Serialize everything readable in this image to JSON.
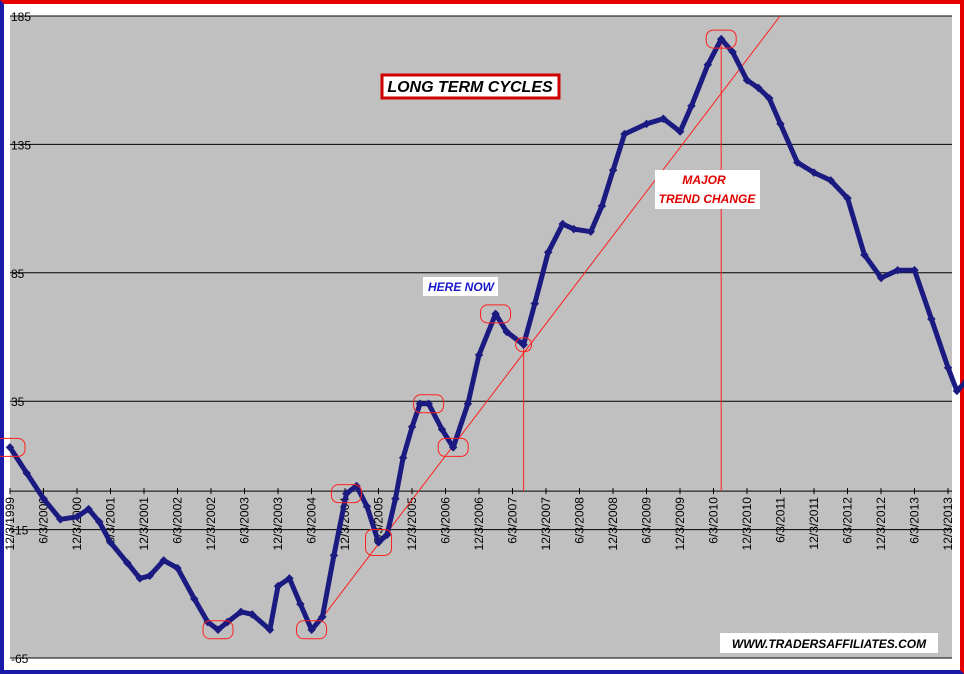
{
  "chart_data": {
    "type": "line",
    "title": "LONG TERM CYCLES",
    "xlabel": "",
    "ylabel": "",
    "ylim": [
      -65,
      185
    ],
    "y_ticks": [
      "185",
      "135",
      "85",
      "35",
      "-15",
      "-65"
    ],
    "x_ticks": [
      "12/3/1999",
      "6/3/2000",
      "12/3/2000",
      "6/3/2001",
      "12/3/2001",
      "6/3/2002",
      "12/3/2002",
      "6/3/2003",
      "12/3/2003",
      "6/3/2004",
      "12/3/2004",
      "6/3/2005",
      "12/3/2005",
      "6/3/2006",
      "12/3/2006",
      "6/3/2007",
      "12/3/2007",
      "6/3/2008",
      "12/3/2008",
      "6/3/2009",
      "12/3/2009",
      "6/3/2010",
      "12/3/2010",
      "6/3/2011",
      "12/3/2011",
      "6/3/2012",
      "12/3/2012",
      "6/3/2013",
      "12/3/2013"
    ],
    "grid": "horizontal",
    "plot_background": "#c0c0c0",
    "series_color": "#1a1a80",
    "series": [
      {
        "values": [
          [
            "1999-12-03",
            [
              17
            ]
          ],
          [
            "2000-03-03",
            [
              7
            ]
          ],
          [
            "2000-06-03",
            [
              -3
            ]
          ],
          [
            "2000-09-03",
            [
              -11
            ]
          ],
          [
            "2000-12-03",
            [
              -10
            ]
          ],
          [
            "2001-02-03",
            [
              -7
            ]
          ],
          [
            "2001-04-03",
            [
              -12
            ]
          ],
          [
            "2001-06-03",
            [
              -20
            ]
          ],
          [
            "2001-09-03",
            [
              -28
            ]
          ],
          [
            "2001-11-10",
            [
              -34
            ]
          ],
          [
            "2002-01-03",
            [
              -33
            ]
          ],
          [
            "2002-03-20",
            [
              -27
            ]
          ],
          [
            "2002-06-03",
            [
              -30
            ]
          ],
          [
            "2002-09-03",
            [
              -42
            ]
          ],
          [
            "2002-11-15",
            [
              -51
            ]
          ],
          [
            "2003-01-10",
            [
              -54
            ]
          ],
          [
            "2003-03-03",
            [
              -51
            ]
          ],
          [
            "2003-05-15",
            [
              -47
            ]
          ],
          [
            "2003-07-15",
            [
              -48
            ]
          ],
          [
            "2003-10-20",
            [
              -54
            ]
          ],
          [
            "2003-12-03",
            [
              -37
            ]
          ],
          [
            "2004-02-03",
            [
              -34
            ]
          ],
          [
            "2004-04-03",
            [
              -44
            ]
          ],
          [
            "2004-06-03",
            [
              -54
            ]
          ],
          [
            "2004-08-01",
            [
              -49
            ]
          ],
          [
            "2004-10-03",
            [
              -25
            ]
          ],
          [
            "2004-12-10",
            [
              -1
            ]
          ],
          [
            "2005-02-03",
            [
              2
            ]
          ],
          [
            "2005-04-01",
            [
              -6
            ]
          ],
          [
            "2005-06-03",
            [
              -20
            ]
          ],
          [
            "2005-07-20",
            [
              -17
            ]
          ],
          [
            "2005-09-03",
            [
              -3
            ]
          ],
          [
            "2005-10-15",
            [
              13
            ]
          ],
          [
            "2005-12-03",
            [
              25
            ]
          ],
          [
            "2006-01-15",
            [
              34
            ]
          ],
          [
            "2006-03-03",
            [
              34
            ]
          ],
          [
            "2006-05-15",
            [
              24
            ]
          ],
          [
            "2006-07-15",
            [
              17
            ]
          ],
          [
            "2006-10-03",
            [
              34
            ]
          ],
          [
            "2006-12-03",
            [
              53
            ]
          ],
          [
            "2007-03-03",
            [
              69
            ]
          ],
          [
            "2007-05-03",
            [
              62
            ]
          ],
          [
            "2007-08-03",
            [
              57
            ]
          ],
          [
            "2007-10-03",
            [
              73
            ]
          ],
          [
            "2007-12-15",
            [
              93
            ]
          ],
          [
            "2008-03-03",
            [
              104
            ]
          ],
          [
            "2008-05-03",
            [
              102
            ]
          ],
          [
            "2008-08-03",
            [
              101
            ]
          ],
          [
            "2008-10-03",
            [
              111
            ]
          ],
          [
            "2008-12-03",
            [
              125
            ]
          ],
          [
            "2009-02-03",
            [
              139
            ]
          ],
          [
            "2009-06-03",
            [
              143
            ]
          ],
          [
            "2009-09-03",
            [
              145
            ]
          ],
          [
            "2009-12-03",
            [
              140
            ]
          ],
          [
            "2010-02-03",
            [
              150
            ]
          ],
          [
            "2010-05-03",
            [
              166
            ]
          ],
          [
            "2010-07-15",
            [
              176
            ]
          ],
          [
            "2010-09-15",
            [
              171
            ]
          ],
          [
            "2010-12-03",
            [
              160
            ]
          ],
          [
            "2011-02-03",
            [
              157
            ]
          ],
          [
            "2011-04-03",
            [
              153
            ]
          ],
          [
            "2011-06-03",
            [
              143
            ]
          ],
          [
            "2011-09-03",
            [
              128
            ]
          ],
          [
            "2011-12-03",
            [
              124
            ]
          ],
          [
            "2012-03-03",
            [
              121
            ]
          ],
          [
            "2012-06-03",
            [
              114
            ]
          ],
          [
            "2012-09-03",
            [
              92
            ]
          ],
          [
            "2012-12-03",
            [
              83
            ]
          ],
          [
            "2013-03-03",
            [
              86
            ]
          ],
          [
            "2013-06-03",
            [
              86
            ]
          ],
          [
            "2013-09-03",
            [
              67
            ]
          ],
          [
            "2013-12-03",
            [
              48
            ]
          ],
          [
            "2014-01-20",
            [
              39
            ]
          ],
          [
            "2014-03-15",
            [
              43
            ]
          ]
        ]
      }
    ],
    "trend_line": {
      "start": [
        "2004-06-01",
        -55
      ],
      "end": [
        "2011-06-01",
        185
      ]
    },
    "annotations": {
      "here_now": "HERE NOW",
      "major_trend_change_line1": "MAJOR",
      "major_trend_change_line2": "TREND CHANGE"
    },
    "watermark": "WWW.TRADERSAFFILIATES.COM"
  }
}
